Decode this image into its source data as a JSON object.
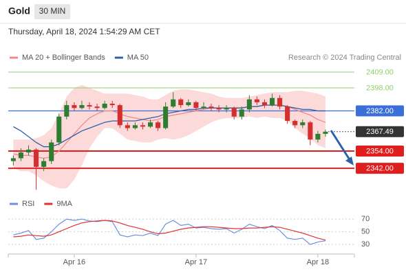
{
  "chart_data": [
    {
      "type": "candlestick",
      "title": "Gold",
      "timeframe": "30 MIN",
      "subtitle": "Thursday, April 18, 2024 1:54:29 AM CET",
      "source": "Research © 2024 Trading Central",
      "x": [
        -12,
        -10.5,
        -9,
        -7.5,
        -6,
        -4.5,
        -3,
        -1.5,
        0,
        1.5,
        3,
        4.5,
        6,
        7.5,
        9,
        10.5,
        12,
        13.5,
        15,
        16.5,
        18,
        19.5,
        21,
        22.5,
        24,
        25.5,
        27,
        28.5,
        30,
        31.5,
        33,
        34.5,
        36,
        37.5,
        39,
        40.5,
        42,
        43.5,
        45,
        46.5,
        48,
        49.5
      ],
      "open": [
        2347,
        2349,
        2353,
        2355,
        2343,
        2347,
        2360,
        2378,
        2386,
        2384,
        2386,
        2385,
        2384,
        2387,
        2386,
        2372,
        2370,
        2372,
        2371,
        2374,
        2370,
        2385,
        2390,
        2386,
        2388,
        2384,
        2385,
        2384,
        2383,
        2384,
        2378,
        2383,
        2390,
        2388,
        2386,
        2391,
        2385,
        2375,
        2372,
        2374,
        2362,
        2366
      ],
      "high": [
        2351,
        2356,
        2358,
        2356,
        2349,
        2362,
        2380,
        2389,
        2388,
        2389,
        2388,
        2387,
        2389,
        2389,
        2387,
        2374,
        2374,
        2374,
        2376,
        2375,
        2388,
        2395,
        2391,
        2390,
        2389,
        2388,
        2387,
        2386,
        2386,
        2385,
        2385,
        2393,
        2392,
        2390,
        2394,
        2393,
        2386,
        2376,
        2376,
        2375,
        2368,
        2369
      ],
      "low": [
        2344,
        2347,
        2351,
        2327,
        2340,
        2345,
        2358,
        2376,
        2382,
        2383,
        2383,
        2382,
        2383,
        2384,
        2370,
        2368,
        2369,
        2369,
        2370,
        2368,
        2369,
        2384,
        2384,
        2385,
        2382,
        2383,
        2382,
        2381,
        2381,
        2376,
        2376,
        2381,
        2386,
        2384,
        2385,
        2383,
        2373,
        2370,
        2370,
        2358,
        2360,
        2364
      ],
      "close": [
        2349,
        2353,
        2355,
        2343,
        2347,
        2360,
        2378,
        2386,
        2384,
        2386,
        2385,
        2384,
        2387,
        2386,
        2372,
        2370,
        2372,
        2371,
        2374,
        2370,
        2385,
        2390,
        2386,
        2388,
        2384,
        2385,
        2384,
        2383,
        2384,
        2378,
        2383,
        2390,
        2388,
        2386,
        2391,
        2385,
        2375,
        2372,
        2374,
        2362,
        2366,
        2367.49
      ],
      "up_color": "#2e7d32",
      "down_color": "#d32f2f",
      "overlays": [
        {
          "name": "MA 20 + Bollinger Bands",
          "color": "#f08a8a",
          "band_color": "#fbd3d3",
          "values": [
            2352,
            2351,
            2351,
            2350,
            2349,
            2350,
            2354,
            2360,
            2366,
            2372,
            2377,
            2380,
            2382,
            2382,
            2380,
            2378,
            2377,
            2376,
            2375,
            2376,
            2378,
            2379,
            2380,
            2381,
            2382,
            2383,
            2384,
            2384,
            2384,
            2384,
            2384,
            2385,
            2385,
            2386,
            2386,
            2386,
            2385,
            2383,
            2381,
            2379,
            2376,
            2374
          ],
          "upper": [
            2362,
            2362,
            2362,
            2363,
            2365,
            2370,
            2380,
            2392,
            2398,
            2400,
            2398,
            2396,
            2394,
            2394,
            2394,
            2394,
            2393,
            2392,
            2390,
            2390,
            2393,
            2396,
            2397,
            2397,
            2396,
            2395,
            2394,
            2392,
            2391,
            2391,
            2391,
            2392,
            2393,
            2394,
            2395,
            2395,
            2395,
            2396,
            2396,
            2395,
            2394,
            2392
          ],
          "lower": [
            2342,
            2340,
            2340,
            2337,
            2333,
            2330,
            2328,
            2328,
            2334,
            2344,
            2356,
            2364,
            2370,
            2370,
            2366,
            2362,
            2361,
            2360,
            2360,
            2362,
            2363,
            2362,
            2363,
            2365,
            2368,
            2371,
            2374,
            2376,
            2377,
            2377,
            2377,
            2378,
            2377,
            2378,
            2377,
            2377,
            2375,
            2370,
            2366,
            2363,
            2358,
            2356
          ]
        },
        {
          "name": "MA 50",
          "color": "#2e5fa8",
          "values": [
            2371,
            2368,
            2364,
            2360,
            2357,
            2357,
            2359,
            2362,
            2365,
            2368,
            2370,
            2372,
            2374,
            2375,
            2375,
            2375,
            2375,
            2376,
            2377,
            2378,
            2380,
            2381,
            2382,
            2383,
            2383,
            2384,
            2384,
            2384,
            2384,
            2384,
            2384,
            2385,
            2385,
            2386,
            2386,
            2386,
            2385,
            2384,
            2383,
            2383,
            2382,
            2382
          ]
        }
      ],
      "levels": [
        {
          "value": 2409,
          "label": "2409.00",
          "color": "#8fcf6a",
          "boxed": false
        },
        {
          "value": 2398,
          "label": "2398.00",
          "color": "#8fcf6a",
          "boxed": false
        },
        {
          "value": 2382,
          "label": "2382.00",
          "color": "#3a6fd8",
          "boxed": true
        },
        {
          "value": 2354,
          "label": "2354.00",
          "color": "#e01e1e",
          "boxed": true
        },
        {
          "value": 2342,
          "label": "2342.00",
          "color": "#e01e1e",
          "boxed": true
        }
      ],
      "last_price": 2367.49,
      "last_color": "#333333",
      "xlim": [
        -13,
        55.2
      ],
      "ylim": [
        2325.3,
        2413.8
      ]
    },
    {
      "type": "line",
      "x": [
        -12,
        -10.5,
        -9,
        -7.5,
        -6,
        -4.5,
        -3,
        -1.5,
        0,
        1.5,
        3,
        4.5,
        6,
        7.5,
        9,
        10.5,
        12,
        13.5,
        15,
        16.5,
        18,
        19.5,
        21,
        22.5,
        24,
        25.5,
        27,
        28.5,
        30,
        31.5,
        33,
        34.5,
        36,
        37.5,
        39,
        40.5,
        42,
        43.5,
        45,
        46.5,
        48,
        49.5
      ],
      "series": [
        {
          "name": "RSI",
          "color": "#6d8fe0",
          "values": [
            45,
            48,
            52,
            38,
            40,
            50,
            62,
            70,
            68,
            70,
            67,
            66,
            68,
            66,
            45,
            42,
            45,
            44,
            48,
            44,
            62,
            68,
            60,
            62,
            56,
            57,
            55,
            54,
            55,
            48,
            54,
            62,
            58,
            55,
            60,
            52,
            40,
            38,
            40,
            30,
            34,
            36
          ]
        },
        {
          "name": "9MA",
          "color": "#e03030",
          "values": [
            42,
            43,
            45,
            44,
            43,
            45,
            50,
            55,
            60,
            64,
            66,
            67,
            68,
            67,
            64,
            60,
            57,
            54,
            50,
            47,
            48,
            51,
            54,
            56,
            57,
            58,
            58,
            57,
            56,
            55,
            55,
            56,
            56,
            57,
            58,
            57,
            54,
            51,
            48,
            44,
            40,
            37
          ]
        }
      ],
      "xlim": [
        -13,
        55.2
      ],
      "xticks": [
        {
          "value": 0,
          "label": "Apr 16"
        },
        {
          "value": 24,
          "label": "Apr 17"
        },
        {
          "value": 48,
          "label": "Apr 18"
        }
      ],
      "ylim": [
        15,
        82
      ],
      "yticks": [
        30,
        50,
        70
      ],
      "grid": true
    }
  ]
}
